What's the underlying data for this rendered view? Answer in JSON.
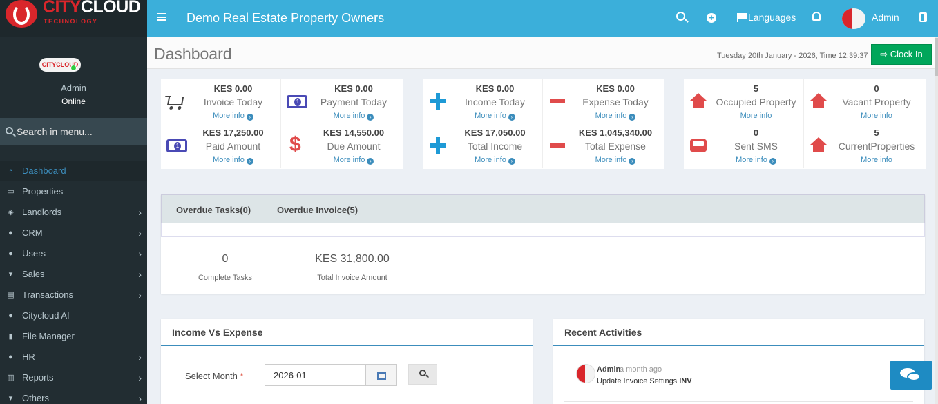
{
  "brand": {
    "city": "CITY",
    "cloud": "CLOUD",
    "tech": "TECHNOLOGY"
  },
  "header": {
    "title": "Demo Real Estate Property Owners",
    "languages": "Languages",
    "user": "Admin"
  },
  "sidebar": {
    "user_name": "Admin",
    "user_status": "Online",
    "search_placeholder": "Search in menu...",
    "items": [
      {
        "label": "Dashboard",
        "icon": "dashboard-icon",
        "active": true,
        "arrow": false
      },
      {
        "label": "Properties",
        "icon": "folder-icon",
        "active": false,
        "arrow": false
      },
      {
        "label": "Landlords",
        "icon": "layers-icon",
        "active": false,
        "arrow": true
      },
      {
        "label": "CRM",
        "icon": "users-icon",
        "active": false,
        "arrow": true
      },
      {
        "label": "Users",
        "icon": "users-icon",
        "active": false,
        "arrow": true
      },
      {
        "label": "Sales",
        "icon": "cart-icon",
        "active": false,
        "arrow": true
      },
      {
        "label": "Transactions",
        "icon": "ledger-icon",
        "active": false,
        "arrow": true
      },
      {
        "label": "Citycloud AI",
        "icon": "chat-icon",
        "active": false,
        "arrow": false
      },
      {
        "label": "File Manager",
        "icon": "file-icon",
        "active": false,
        "arrow": false
      },
      {
        "label": "HR",
        "icon": "users-icon",
        "active": false,
        "arrow": true
      },
      {
        "label": "Reports",
        "icon": "bar-chart-icon",
        "active": false,
        "arrow": true
      },
      {
        "label": "Others",
        "icon": "cart-icon",
        "active": false,
        "arrow": true
      }
    ]
  },
  "page": {
    "title": "Dashboard",
    "date": "Tuesday 20th January - 2026,  Time  12:39:37",
    "clock_in": "Clock In"
  },
  "stats": {
    "more_info": "More info",
    "group1": [
      {
        "value": "KES 0.00",
        "label": "Invoice Today",
        "icon": "cart-icon"
      },
      {
        "value": "KES 0.00",
        "label": "Payment Today",
        "icon": "money-icon"
      },
      {
        "value": "KES 17,250.00",
        "label": "Paid Amount",
        "icon": "money-icon"
      },
      {
        "value": "KES 14,550.00",
        "label": "Due Amount",
        "icon": "dollar-icon"
      }
    ],
    "group2": [
      {
        "value": "KES 0.00",
        "label": "Income Today",
        "icon": "plus-icon"
      },
      {
        "value": "KES 0.00",
        "label": "Expense Today",
        "icon": "minus-icon"
      },
      {
        "value": "KES 17,050.00",
        "label": "Total Income",
        "icon": "plus-icon"
      },
      {
        "value": "KES 1,045,340.00",
        "label": "Total Expense",
        "icon": "minus-icon"
      }
    ],
    "group3": [
      {
        "value": "5",
        "label": "Occupied Property",
        "icon": "home-icon"
      },
      {
        "value": "0",
        "label": "Vacant Property",
        "icon": "home-icon"
      },
      {
        "value": "0",
        "label": "Sent SMS",
        "icon": "inbox-icon"
      },
      {
        "value": "5",
        "label": "CurrentProperties",
        "icon": "home-icon"
      }
    ]
  },
  "tabs": {
    "overdue_tasks": "Overdue Tasks(0)",
    "overdue_invoice": "Overdue Invoice(5)",
    "complete_tasks_value": "0",
    "complete_tasks_label": "Complete Tasks",
    "total_invoice_value": "KES 31,800.00",
    "total_invoice_label": "Total Invoice Amount"
  },
  "income_panel": {
    "title": "Income Vs Expense",
    "select_label": "Select Month",
    "required_mark": "*",
    "month_value": "2026-01"
  },
  "activities_panel": {
    "title": "Recent Activities",
    "user": "Admin",
    "time": "a month ago",
    "description": "Update Invoice Settings",
    "description_bold": "INV"
  }
}
